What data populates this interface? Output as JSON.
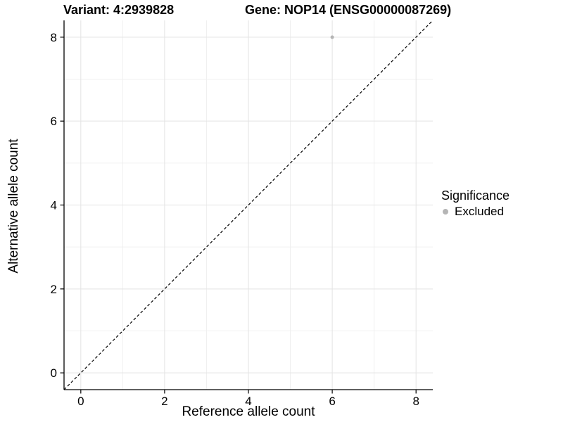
{
  "header": {
    "variant_title": "Variant: 4:2939828",
    "gene_title": "Gene: NOP14 (ENSG00000087269)"
  },
  "colors": {
    "background": "#ffffff",
    "grid_major": "#e3e3e3",
    "grid_minor": "#f0f0f0",
    "axis_line": "#000000",
    "tick_label": "#000000",
    "reference_line": "#000000",
    "excluded_point": "#b5b5b5"
  },
  "chart_data": {
    "type": "scatter",
    "title_left": "Variant: 4:2939828",
    "title_right": "Gene: NOP14 (ENSG00000087269)",
    "xlabel": "Reference allele count",
    "ylabel": "Alternative allele count",
    "xlim": [
      -0.4,
      8.4
    ],
    "ylim": [
      -0.4,
      8.4
    ],
    "xticks": [
      0,
      2,
      4,
      6,
      8
    ],
    "yticks": [
      0,
      2,
      4,
      6,
      8
    ],
    "minor_xticks": [
      1,
      3,
      5,
      7
    ],
    "minor_yticks": [
      1,
      3,
      5,
      7
    ],
    "grid": "on",
    "legend_position": "right",
    "legend": {
      "title": "Significance",
      "items": [
        {
          "label": "Excluded",
          "color": "#b5b5b5"
        }
      ]
    },
    "series": [
      {
        "name": "Excluded",
        "color": "#b5b5b5",
        "points": [
          {
            "x": 6,
            "y": 8
          }
        ]
      }
    ],
    "reference_line": {
      "type": "identity",
      "slope": 1,
      "intercept": 0,
      "style": "dashed",
      "color": "#000000"
    }
  }
}
